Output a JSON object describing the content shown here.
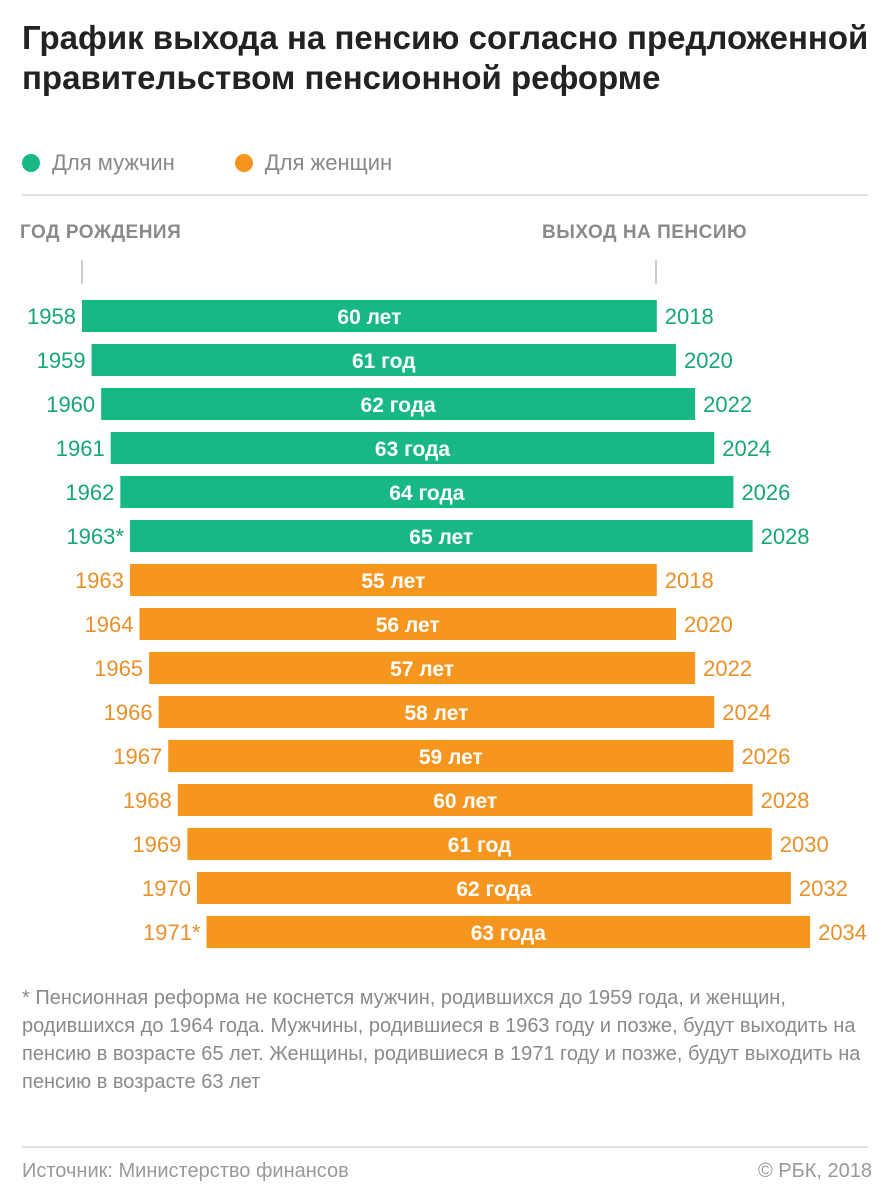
{
  "title": "График выхода на пенсию согласно предложенной правительством пенсионной реформе",
  "legend": [
    {
      "label": "Для мужчин",
      "color": "#17b886"
    },
    {
      "label": "Для женщин",
      "color": "#f7961f"
    }
  ],
  "axis_left_label": "ГОД РОЖДЕНИЯ",
  "axis_right_label": "ВЫХОД НА ПЕНСИЮ",
  "chart_data": {
    "type": "bar",
    "orientation": "horizontal-range",
    "series": [
      {
        "name": "Для мужчин",
        "color": "#17b886",
        "rows": [
          {
            "birth": "1958",
            "start": 1958,
            "end": 2018,
            "age": "60 лет"
          },
          {
            "birth": "1959",
            "start": 1959,
            "end": 2020,
            "age": "61 год"
          },
          {
            "birth": "1960",
            "start": 1960,
            "end": 2022,
            "age": "62 года"
          },
          {
            "birth": "1961",
            "start": 1961,
            "end": 2024,
            "age": "63 года"
          },
          {
            "birth": "1962",
            "start": 1962,
            "end": 2026,
            "age": "64 года"
          },
          {
            "birth": "1963*",
            "start": 1963,
            "end": 2028,
            "age": "65 лет"
          }
        ]
      },
      {
        "name": "Для женщин",
        "color": "#f7961f",
        "rows": [
          {
            "birth": "1963",
            "start": 1963,
            "end": 2018,
            "age": "55 лет"
          },
          {
            "birth": "1964",
            "start": 1964,
            "end": 2020,
            "age": "56 лет"
          },
          {
            "birth": "1965",
            "start": 1965,
            "end": 2022,
            "age": "57 лет"
          },
          {
            "birth": "1966",
            "start": 1966,
            "end": 2024,
            "age": "58 лет"
          },
          {
            "birth": "1967",
            "start": 1967,
            "end": 2026,
            "age": "59 лет"
          },
          {
            "birth": "1968",
            "start": 1968,
            "end": 2028,
            "age": "60 лет"
          },
          {
            "birth": "1969",
            "start": 1969,
            "end": 2030,
            "age": "61 год"
          },
          {
            "birth": "1970",
            "start": 1970,
            "end": 2032,
            "age": "62 года"
          },
          {
            "birth": "1971*",
            "start": 1971,
            "end": 2034,
            "age": "63 года"
          }
        ]
      }
    ]
  },
  "note": "* Пенсионная реформа не коснется мужчин, родившихся до 1959 года, и женщин, родившихся до 1964 года. Мужчины, родившиеся в 1963 году и позже, будут выходить на пенсию в возрасте 65 лет. Женщины, родившиеся в 1971 году и позже, будут выходить на пенсию в возрасте 63 лет",
  "footer": {
    "source": "Источник: Министерство финансов",
    "copyright": "© РБК, 2018"
  }
}
